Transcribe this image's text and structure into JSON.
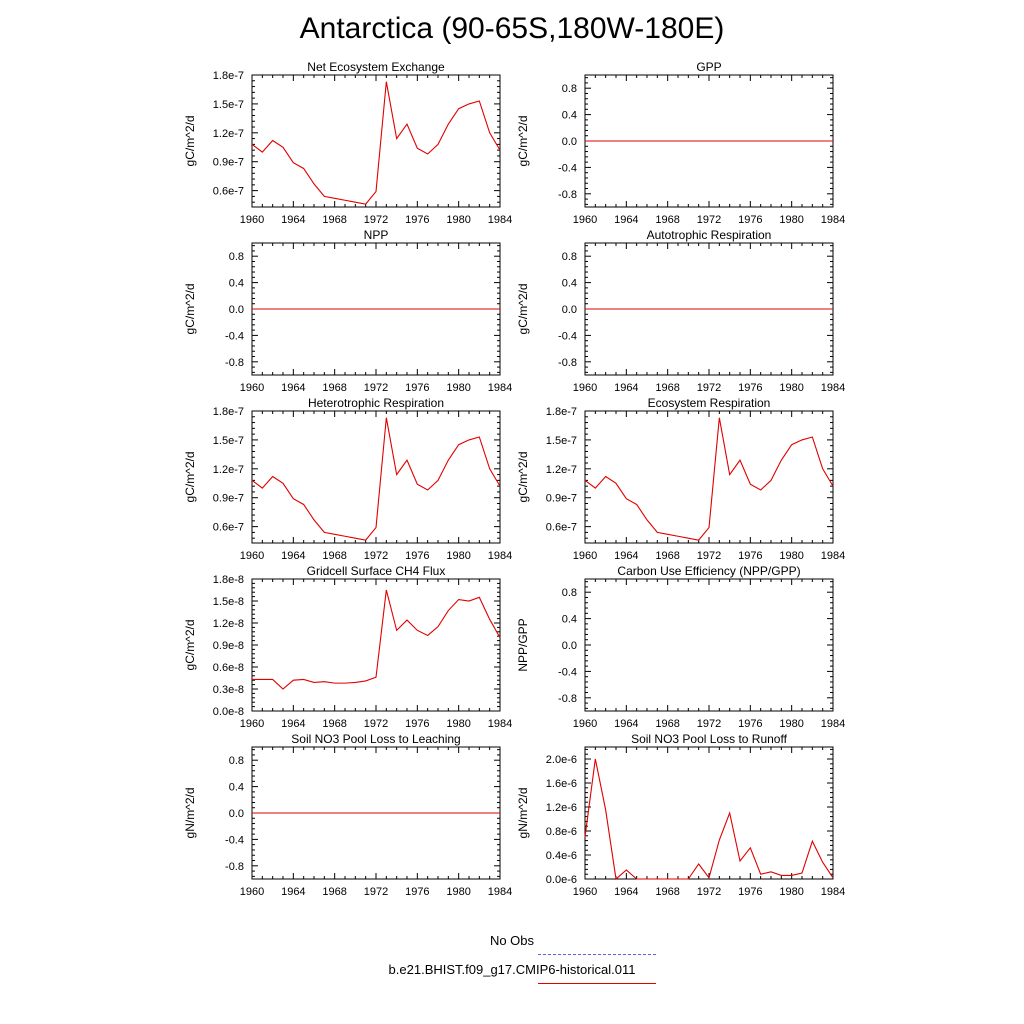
{
  "title": "Antarctica (90-65S,180W-180E)",
  "legend": [
    {
      "label": "No Obs",
      "color": "#6060e0",
      "style": "dashed"
    },
    {
      "label": "b.e21.BHIST.f09_g17.CMIP6-historical.011",
      "color": "#e00000",
      "style": "solid"
    }
  ],
  "chart_data": [
    {
      "type": "line",
      "title": "Net Ecosystem Exchange",
      "ylabel": "gC/m^2/d",
      "xlim": [
        1960,
        1984
      ],
      "xticks": [
        1960,
        1964,
        1968,
        1972,
        1976,
        1980,
        1984
      ],
      "ylim": [
        4.3e-08,
        1.8e-07
      ],
      "yticks": [
        6e-08,
        9e-08,
        1.2e-07,
        1.5e-07,
        1.8e-07
      ],
      "yticklabels": [
        "0.6e-7",
        "0.9e-7",
        "1.2e-7",
        "1.5e-7",
        "1.8e-7"
      ],
      "series": [
        {
          "color": "#e00000",
          "x": [
            1960,
            1961,
            1962,
            1963,
            1964,
            1965,
            1966,
            1967,
            1968,
            1969,
            1970,
            1971,
            1972,
            1973,
            1974,
            1975,
            1976,
            1977,
            1978,
            1979,
            1980,
            1981,
            1982,
            1983,
            1984
          ],
          "y": [
            1.08e-07,
            1e-07,
            1.12e-07,
            1.05e-07,
            8.9e-08,
            8.3e-08,
            6.7e-08,
            5.4e-08,
            5.2e-08,
            5e-08,
            4.8e-08,
            4.6e-08,
            5.9e-08,
            1.73e-07,
            1.14e-07,
            1.29e-07,
            1.04e-07,
            9.8e-08,
            1.08e-07,
            1.29e-07,
            1.45e-07,
            1.5e-07,
            1.53e-07,
            1.2e-07,
            1.02e-07
          ]
        }
      ]
    },
    {
      "type": "line",
      "title": "GPP",
      "ylabel": "gC/m^2/d",
      "xlim": [
        1960,
        1984
      ],
      "xticks": [
        1960,
        1964,
        1968,
        1972,
        1976,
        1980,
        1984
      ],
      "ylim": [
        -1,
        1
      ],
      "yticks": [
        -0.8,
        -0.4,
        0.0,
        0.4,
        0.8
      ],
      "yticklabels": [
        "-0.8",
        "-0.4",
        "0.0",
        "0.4",
        "0.8"
      ],
      "series": [
        {
          "color": "#e00000",
          "x": [
            1960,
            1984
          ],
          "y": [
            0,
            0
          ]
        }
      ]
    },
    {
      "type": "line",
      "title": "NPP",
      "ylabel": "gC/m^2/d",
      "xlim": [
        1960,
        1984
      ],
      "xticks": [
        1960,
        1964,
        1968,
        1972,
        1976,
        1980,
        1984
      ],
      "ylim": [
        -1,
        1
      ],
      "yticks": [
        -0.8,
        -0.4,
        0.0,
        0.4,
        0.8
      ],
      "yticklabels": [
        "-0.8",
        "-0.4",
        "0.0",
        "0.4",
        "0.8"
      ],
      "series": [
        {
          "color": "#e00000",
          "x": [
            1960,
            1984
          ],
          "y": [
            0,
            0
          ]
        }
      ]
    },
    {
      "type": "line",
      "title": "Autotrophic Respiration",
      "ylabel": "gC/m^2/d",
      "xlim": [
        1960,
        1984
      ],
      "xticks": [
        1960,
        1964,
        1968,
        1972,
        1976,
        1980,
        1984
      ],
      "ylim": [
        -1,
        1
      ],
      "yticks": [
        -0.8,
        -0.4,
        0.0,
        0.4,
        0.8
      ],
      "yticklabels": [
        "-0.8",
        "-0.4",
        "0.0",
        "0.4",
        "0.8"
      ],
      "series": [
        {
          "color": "#e00000",
          "x": [
            1960,
            1984
          ],
          "y": [
            0,
            0
          ]
        }
      ]
    },
    {
      "type": "line",
      "title": "Heterotrophic Respiration",
      "ylabel": "gC/m^2/d",
      "xlim": [
        1960,
        1984
      ],
      "xticks": [
        1960,
        1964,
        1968,
        1972,
        1976,
        1980,
        1984
      ],
      "ylim": [
        4.3e-08,
        1.8e-07
      ],
      "yticks": [
        6e-08,
        9e-08,
        1.2e-07,
        1.5e-07,
        1.8e-07
      ],
      "yticklabels": [
        "0.6e-7",
        "0.9e-7",
        "1.2e-7",
        "1.5e-7",
        "1.8e-7"
      ],
      "series": [
        {
          "color": "#e00000",
          "x": [
            1960,
            1961,
            1962,
            1963,
            1964,
            1965,
            1966,
            1967,
            1968,
            1969,
            1970,
            1971,
            1972,
            1973,
            1974,
            1975,
            1976,
            1977,
            1978,
            1979,
            1980,
            1981,
            1982,
            1983,
            1984
          ],
          "y": [
            1.08e-07,
            1e-07,
            1.12e-07,
            1.05e-07,
            8.9e-08,
            8.3e-08,
            6.7e-08,
            5.4e-08,
            5.2e-08,
            5e-08,
            4.8e-08,
            4.6e-08,
            5.9e-08,
            1.73e-07,
            1.14e-07,
            1.29e-07,
            1.04e-07,
            9.8e-08,
            1.08e-07,
            1.29e-07,
            1.45e-07,
            1.5e-07,
            1.53e-07,
            1.2e-07,
            1.02e-07
          ]
        }
      ]
    },
    {
      "type": "line",
      "title": "Ecosystem Respiration",
      "ylabel": "gC/m^2/d",
      "xlim": [
        1960,
        1984
      ],
      "xticks": [
        1960,
        1964,
        1968,
        1972,
        1976,
        1980,
        1984
      ],
      "ylim": [
        4.3e-08,
        1.8e-07
      ],
      "yticks": [
        6e-08,
        9e-08,
        1.2e-07,
        1.5e-07,
        1.8e-07
      ],
      "yticklabels": [
        "0.6e-7",
        "0.9e-7",
        "1.2e-7",
        "1.5e-7",
        "1.8e-7"
      ],
      "series": [
        {
          "color": "#e00000",
          "x": [
            1960,
            1961,
            1962,
            1963,
            1964,
            1965,
            1966,
            1967,
            1968,
            1969,
            1970,
            1971,
            1972,
            1973,
            1974,
            1975,
            1976,
            1977,
            1978,
            1979,
            1980,
            1981,
            1982,
            1983,
            1984
          ],
          "y": [
            1.08e-07,
            1e-07,
            1.12e-07,
            1.05e-07,
            8.9e-08,
            8.3e-08,
            6.7e-08,
            5.4e-08,
            5.2e-08,
            5e-08,
            4.8e-08,
            4.6e-08,
            5.9e-08,
            1.73e-07,
            1.14e-07,
            1.29e-07,
            1.04e-07,
            9.8e-08,
            1.08e-07,
            1.29e-07,
            1.45e-07,
            1.5e-07,
            1.53e-07,
            1.2e-07,
            1.02e-07
          ]
        }
      ]
    },
    {
      "type": "line",
      "title": "Gridcell Surface CH4 Flux",
      "ylabel": "gC/m^2/d",
      "xlim": [
        1960,
        1984
      ],
      "xticks": [
        1960,
        1964,
        1968,
        1972,
        1976,
        1980,
        1984
      ],
      "ylim": [
        0,
        1.8e-08
      ],
      "yticks": [
        0,
        3e-09,
        6e-09,
        9e-09,
        1.2e-08,
        1.5e-08,
        1.8e-08
      ],
      "yticklabels": [
        "0.0e-8",
        "0.3e-8",
        "0.6e-8",
        "0.9e-8",
        "1.2e-8",
        "1.5e-8",
        "1.8e-8"
      ],
      "series": [
        {
          "color": "#e00000",
          "x": [
            1960,
            1961,
            1962,
            1963,
            1964,
            1965,
            1966,
            1967,
            1968,
            1969,
            1970,
            1971,
            1972,
            1973,
            1974,
            1975,
            1976,
            1977,
            1978,
            1979,
            1980,
            1981,
            1982,
            1983,
            1984
          ],
          "y": [
            4.3e-09,
            4.3e-09,
            4.3e-09,
            3e-09,
            4.2e-09,
            4.3e-09,
            3.9e-09,
            4e-09,
            3.8e-09,
            3.8e-09,
            3.9e-09,
            4.1e-09,
            4.6e-09,
            1.65e-08,
            1.1e-08,
            1.24e-08,
            1.1e-08,
            1.03e-08,
            1.15e-08,
            1.37e-08,
            1.52e-08,
            1.5e-08,
            1.55e-08,
            1.25e-08,
            1e-08
          ]
        }
      ]
    },
    {
      "type": "line",
      "title": "Carbon Use Efficiency (NPP/GPP)",
      "ylabel": "NPP/GPP",
      "xlim": [
        1960,
        1984
      ],
      "xticks": [
        1960,
        1964,
        1968,
        1972,
        1976,
        1980,
        1984
      ],
      "ylim": [
        -1,
        1
      ],
      "yticks": [
        -0.8,
        -0.4,
        0.0,
        0.4,
        0.8
      ],
      "yticklabels": [
        "-0.8",
        "-0.4",
        "0.0",
        "0.4",
        "0.8"
      ],
      "series": []
    },
    {
      "type": "line",
      "title": "Soil NO3 Pool Loss to Leaching",
      "ylabel": "gN/m^2/d",
      "xlim": [
        1960,
        1984
      ],
      "xticks": [
        1960,
        1964,
        1968,
        1972,
        1976,
        1980,
        1984
      ],
      "ylim": [
        -1,
        1
      ],
      "yticks": [
        -0.8,
        -0.4,
        0.0,
        0.4,
        0.8
      ],
      "yticklabels": [
        "-0.8",
        "-0.4",
        "0.0",
        "0.4",
        "0.8"
      ],
      "series": [
        {
          "color": "#e00000",
          "x": [
            1960,
            1984
          ],
          "y": [
            0,
            0
          ]
        }
      ]
    },
    {
      "type": "line",
      "title": "Soil NO3 Pool Loss to Runoff",
      "ylabel": "gN/m^2/d",
      "xlim": [
        1960,
        1984
      ],
      "xticks": [
        1960,
        1964,
        1968,
        1972,
        1976,
        1980,
        1984
      ],
      "ylim": [
        0,
        2.2e-06
      ],
      "yticks": [
        0,
        4e-07,
        8e-07,
        1.2e-06,
        1.6e-06,
        2e-06
      ],
      "yticklabels": [
        "0.0e-6",
        "0.4e-6",
        "0.8e-6",
        "1.2e-6",
        "1.6e-6",
        "2.0e-6"
      ],
      "series": [
        {
          "color": "#e00000",
          "x": [
            1960,
            1961,
            1962,
            1963,
            1964,
            1965,
            1966,
            1967,
            1968,
            1969,
            1970,
            1971,
            1972,
            1973,
            1974,
            1975,
            1976,
            1977,
            1978,
            1979,
            1980,
            1981,
            1982,
            1983,
            1984
          ],
          "y": [
            7e-07,
            2e-06,
            1.15e-06,
            0.0,
            1.5e-07,
            0.0,
            0.0,
            0.0,
            0.0,
            0.0,
            0.0,
            2.5e-07,
            2e-08,
            6.5e-07,
            1.1e-06,
            3e-07,
            5.2e-07,
            8e-08,
            1.2e-07,
            6e-08,
            6e-08,
            1e-07,
            6.3e-07,
            2.8e-07,
            2e-08
          ]
        }
      ]
    }
  ]
}
